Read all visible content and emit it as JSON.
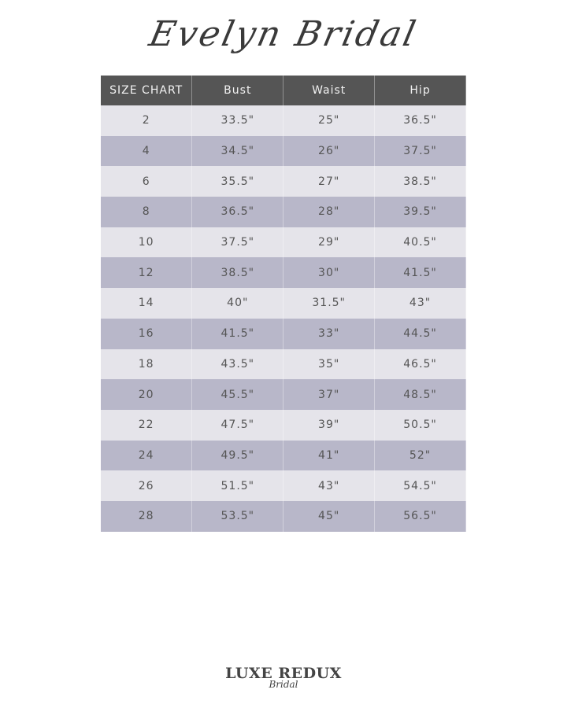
{
  "title": "Evelyn Bridal",
  "table": {
    "headers": [
      "SIZE CHART",
      "Bust",
      "Waist",
      "Hip"
    ],
    "rows": [
      [
        "2",
        "33.5\"",
        "25\"",
        "36.5\""
      ],
      [
        "4",
        "34.5\"",
        "26\"",
        "37.5\""
      ],
      [
        "6",
        "35.5\"",
        "27\"",
        "38.5\""
      ],
      [
        "8",
        "36.5\"",
        "28\"",
        "39.5\""
      ],
      [
        "10",
        "37.5\"",
        "29\"",
        "40.5\""
      ],
      [
        "12",
        "38.5\"",
        "30\"",
        "41.5\""
      ],
      [
        "14",
        "40\"",
        "31.5\"",
        "43\""
      ],
      [
        "16",
        "41.5\"",
        "33\"",
        "44.5\""
      ],
      [
        "18",
        "43.5\"",
        "35\"",
        "46.5\""
      ],
      [
        "20",
        "45.5\"",
        "37\"",
        "48.5\""
      ],
      [
        "22",
        "47.5\"",
        "39\"",
        "50.5\""
      ],
      [
        "24",
        "49.5\"",
        "41\"",
        "52\""
      ],
      [
        "26",
        "51.5\"",
        "43\"",
        "54.5\""
      ],
      [
        "28",
        "53.5\"",
        "45\"",
        "56.5\""
      ]
    ]
  },
  "logo": {
    "main": "LUXE REDUX",
    "sub": "Bridal"
  }
}
